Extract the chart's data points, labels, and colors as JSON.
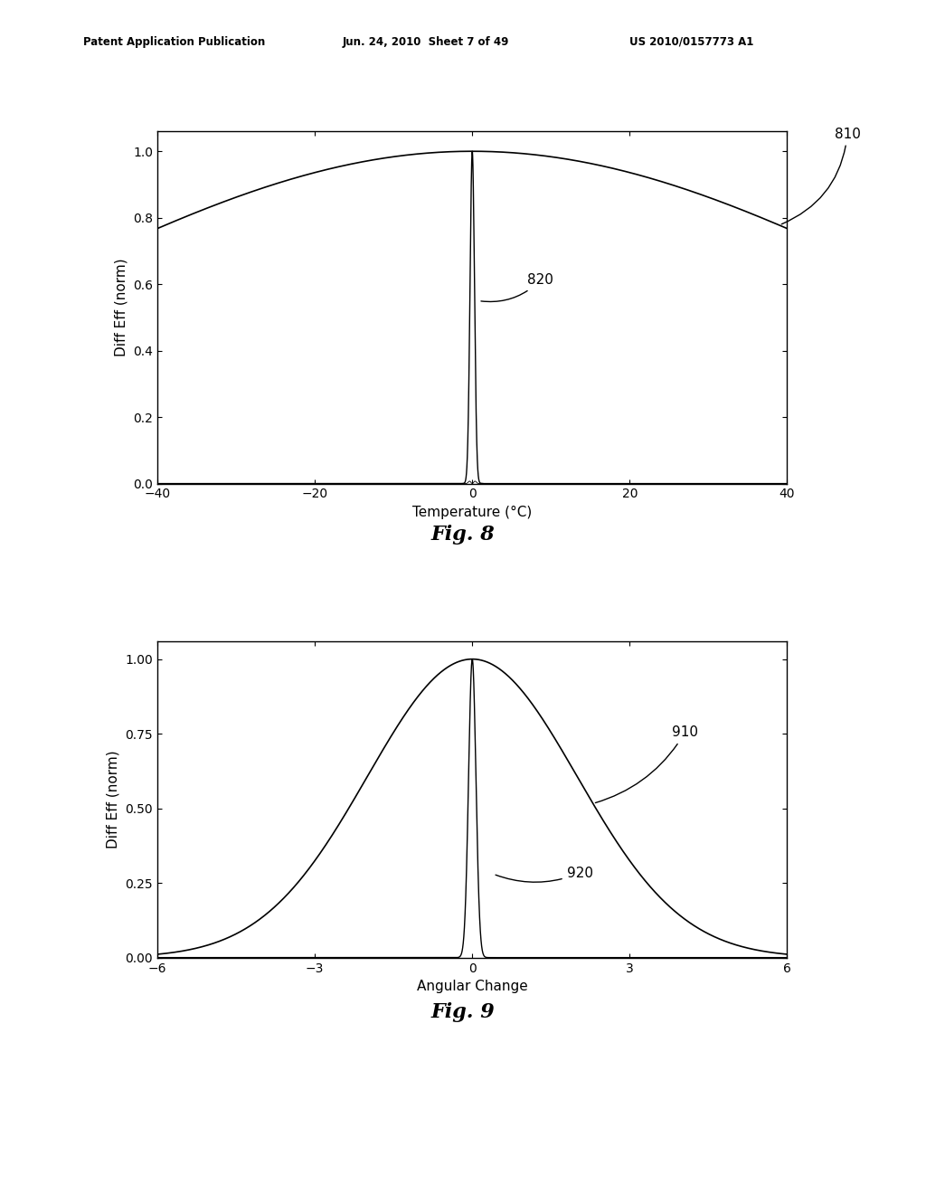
{
  "fig8": {
    "xlabel": "Temperature (°C)",
    "ylabel": "Diff Eff (norm)",
    "xlim": [
      -40,
      40
    ],
    "ylim": [
      0,
      1.06
    ],
    "xticks": [
      -40,
      -20,
      0,
      20,
      40
    ],
    "yticks": [
      0,
      0.2,
      0.4,
      0.6,
      0.8,
      1
    ],
    "label_810": "810",
    "label_820": "820",
    "broad_sigma": 55,
    "narrow_sigma": 0.28,
    "osc_freq": 1.2,
    "osc_amp": 0.025,
    "fig_label": "Fig. 8"
  },
  "fig9": {
    "xlabel": "Angular Change",
    "ylabel": "Diff Eff (norm)",
    "xlim": [
      -6,
      6
    ],
    "ylim": [
      0,
      1.06
    ],
    "xticks": [
      -6,
      -3,
      0,
      3,
      6
    ],
    "yticks": [
      0,
      0.25,
      0.5,
      0.75,
      1
    ],
    "label_910": "910",
    "label_920": "920",
    "broad_sigma": 2.0,
    "narrow_sigma": 0.07,
    "fig_label": "Fig. 9"
  },
  "header_left": "Patent Application Publication",
  "header_mid": "Jun. 24, 2010  Sheet 7 of 49",
  "header_right": "US 2010/0157773 A1",
  "bg_color": "#ffffff",
  "line_color": "#000000"
}
